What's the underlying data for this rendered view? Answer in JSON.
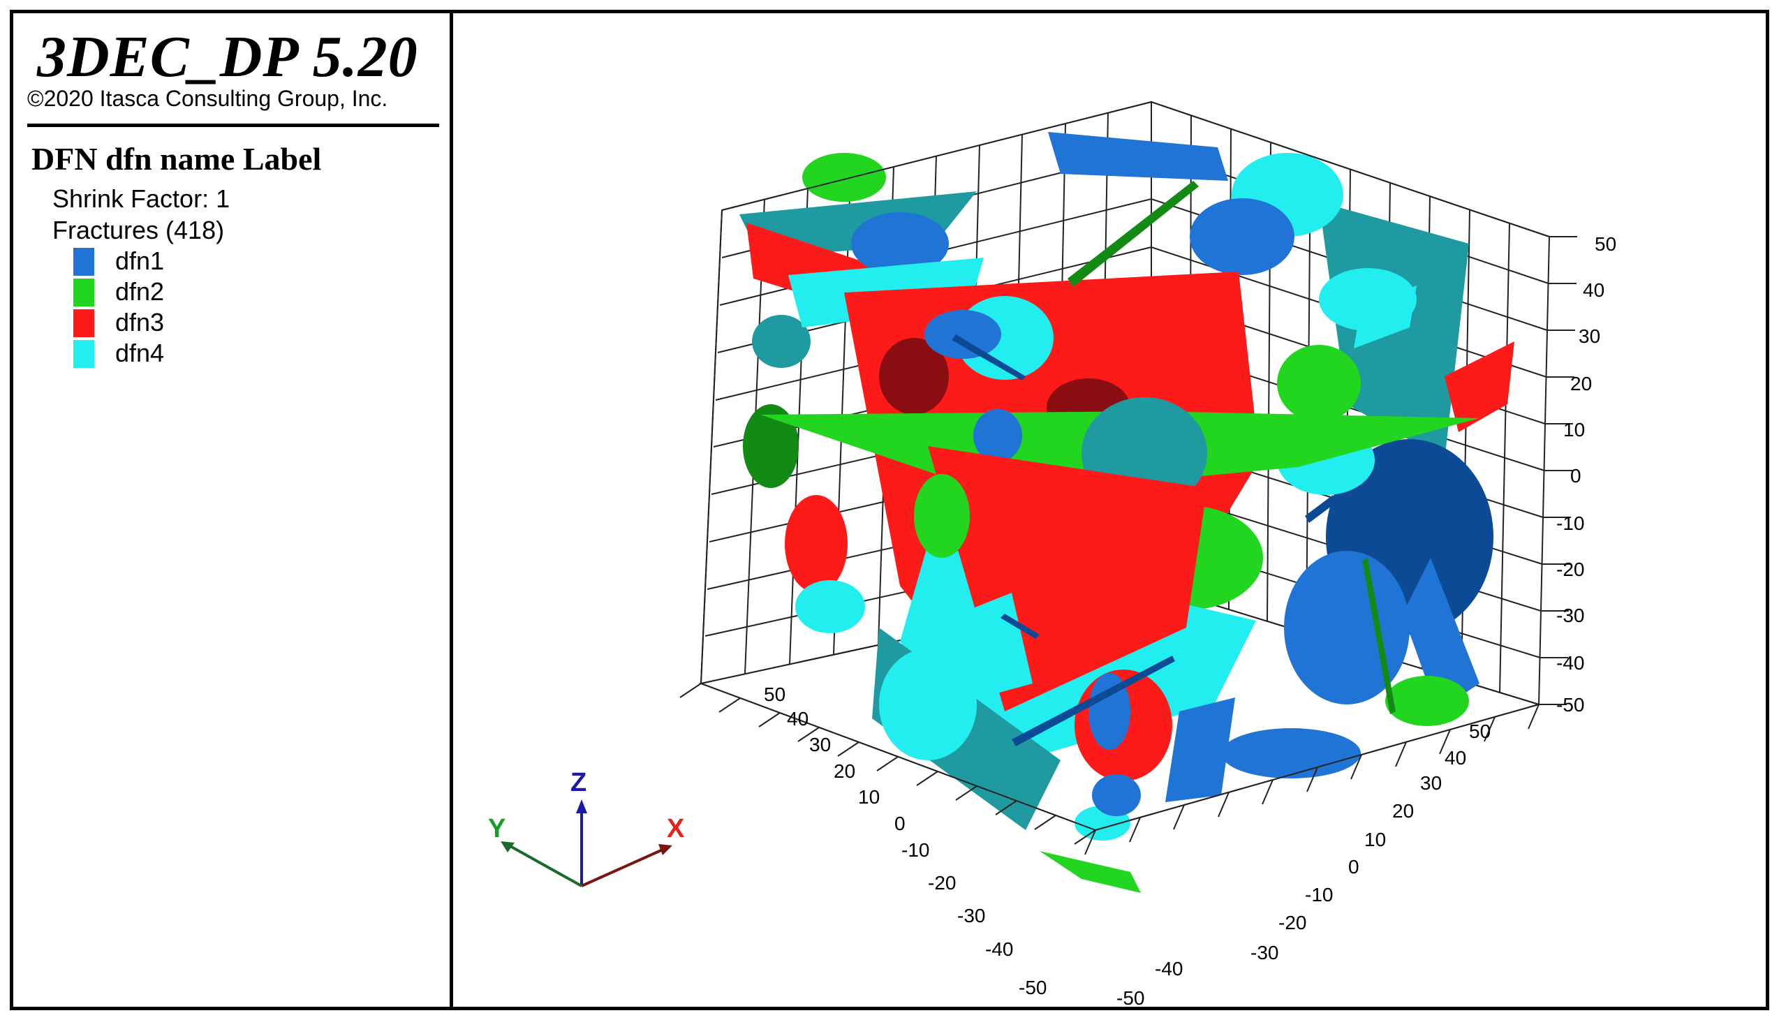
{
  "header": {
    "app_title": "3DEC_DP 5.20",
    "copyright": "©2020 Itasca Consulting Group, Inc."
  },
  "legend": {
    "heading": "DFN dfn name Label",
    "shrink_factor": "Shrink Factor: 1",
    "fractures": "Fractures (418)",
    "items": [
      {
        "label": "dfn1",
        "color": "#1f74d6"
      },
      {
        "label": "dfn2",
        "color": "#22d61f"
      },
      {
        "label": "dfn3",
        "color": "#ff1a1a"
      },
      {
        "label": "dfn4",
        "color": "#22eef0"
      }
    ]
  },
  "axes_triad": {
    "x_label": "X",
    "y_label": "Y",
    "z_label": "Z",
    "x_color": "#e0231c",
    "y_color": "#1a9c2a",
    "z_color": "#1b1aa8"
  },
  "plot_ticks": {
    "z": [
      "50",
      "40",
      "30",
      "20",
      "10",
      "0",
      "-10",
      "-20",
      "-30",
      "-40",
      "-50"
    ],
    "y": [
      "50",
      "40",
      "30",
      "20",
      "10",
      "0",
      "-10",
      "-20",
      "-30",
      "-40",
      "-50"
    ],
    "x": [
      "50",
      "40",
      "30",
      "20",
      "10",
      "0",
      "-10",
      "-20",
      "-30",
      "-40",
      "-50"
    ]
  },
  "colors": {
    "dfn1_dark": "#0d4a96",
    "dfn4_dark": "#1e9aa0",
    "dfn3_dark": "#8a0d12",
    "dfn2_dark": "#138a14"
  }
}
